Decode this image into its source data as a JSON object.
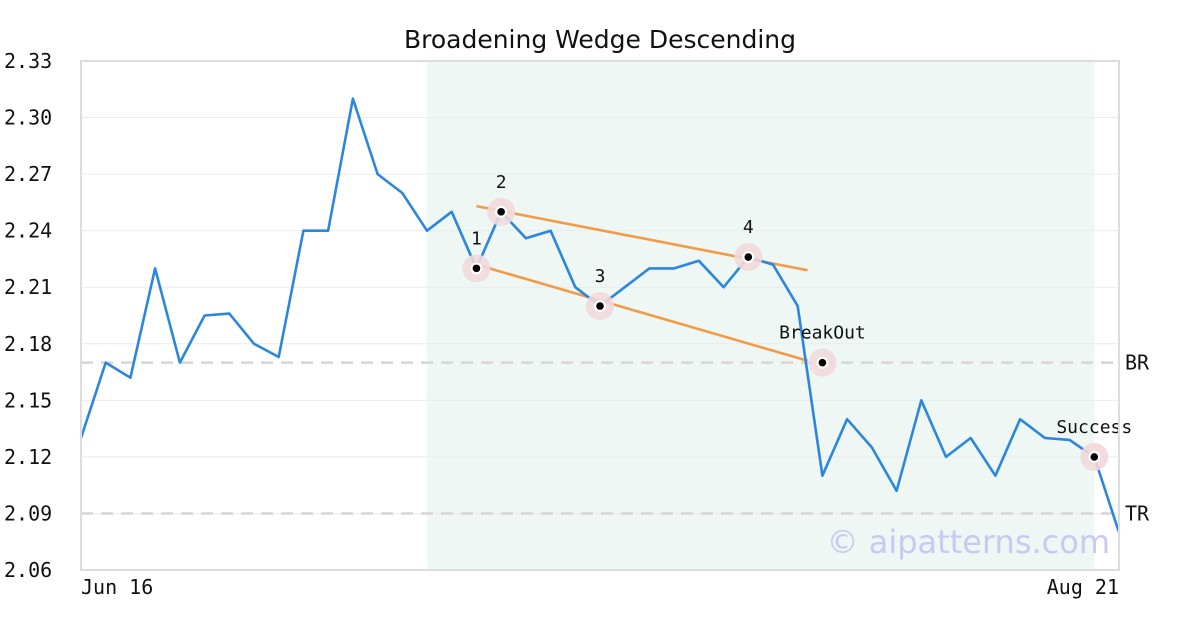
{
  "chart_data": {
    "type": "line",
    "title": "Broadening Wedge Descending",
    "xlabel": "",
    "ylabel": "",
    "ylim": [
      2.06,
      2.33
    ],
    "yticks": [
      "2.33",
      "2.30",
      "2.27",
      "2.24",
      "2.21",
      "2.18",
      "2.15",
      "2.12",
      "2.09",
      "2.06"
    ],
    "xtick_labels": {
      "start": "Jun 16",
      "end": "Aug 21"
    },
    "grid": true,
    "colors": {
      "line": "#2b86e0",
      "trend": "#f39a45",
      "highlight": "#eef7f3",
      "marker_halo": "#f1d8dc",
      "level": "#d6d6d6"
    },
    "series": [
      {
        "values": [
          2.13,
          2.17,
          2.162,
          2.22,
          2.17,
          2.195,
          2.196,
          2.18,
          2.173,
          2.24,
          2.24,
          2.31,
          2.27,
          2.26,
          2.24,
          2.25,
          2.22,
          2.25,
          2.236,
          2.24,
          2.21,
          2.2,
          2.21,
          2.22,
          2.22,
          2.224,
          2.21,
          2.226,
          2.222,
          2.2,
          2.11,
          2.14,
          2.125,
          2.102,
          2.15,
          2.12,
          2.13,
          2.11,
          2.14,
          2.13,
          2.129,
          2.12,
          2.08
        ]
      }
    ],
    "highlight_range": {
      "start": 14,
      "end": 41
    },
    "trendlines": [
      {
        "x1": 16,
        "y1": 2.222,
        "x2": 29.4,
        "y2": 2.171
      },
      {
        "x1": 16,
        "y1": 2.253,
        "x2": 29.4,
        "y2": 2.219
      }
    ],
    "horizontal_levels": [
      {
        "label": "BR",
        "value": 2.17
      },
      {
        "label": "TR",
        "value": 2.09
      }
    ],
    "points": [
      {
        "label": "1",
        "x": 16,
        "y": 2.22
      },
      {
        "label": "2",
        "x": 17,
        "y": 2.25
      },
      {
        "label": "3",
        "x": 21,
        "y": 2.2
      },
      {
        "label": "4",
        "x": 27,
        "y": 2.226
      },
      {
        "label": "BreakOut",
        "x": 30,
        "y": 2.17
      },
      {
        "label": "Success",
        "x": 41,
        "y": 2.12
      }
    ]
  },
  "watermark": "© aipatterns.com"
}
